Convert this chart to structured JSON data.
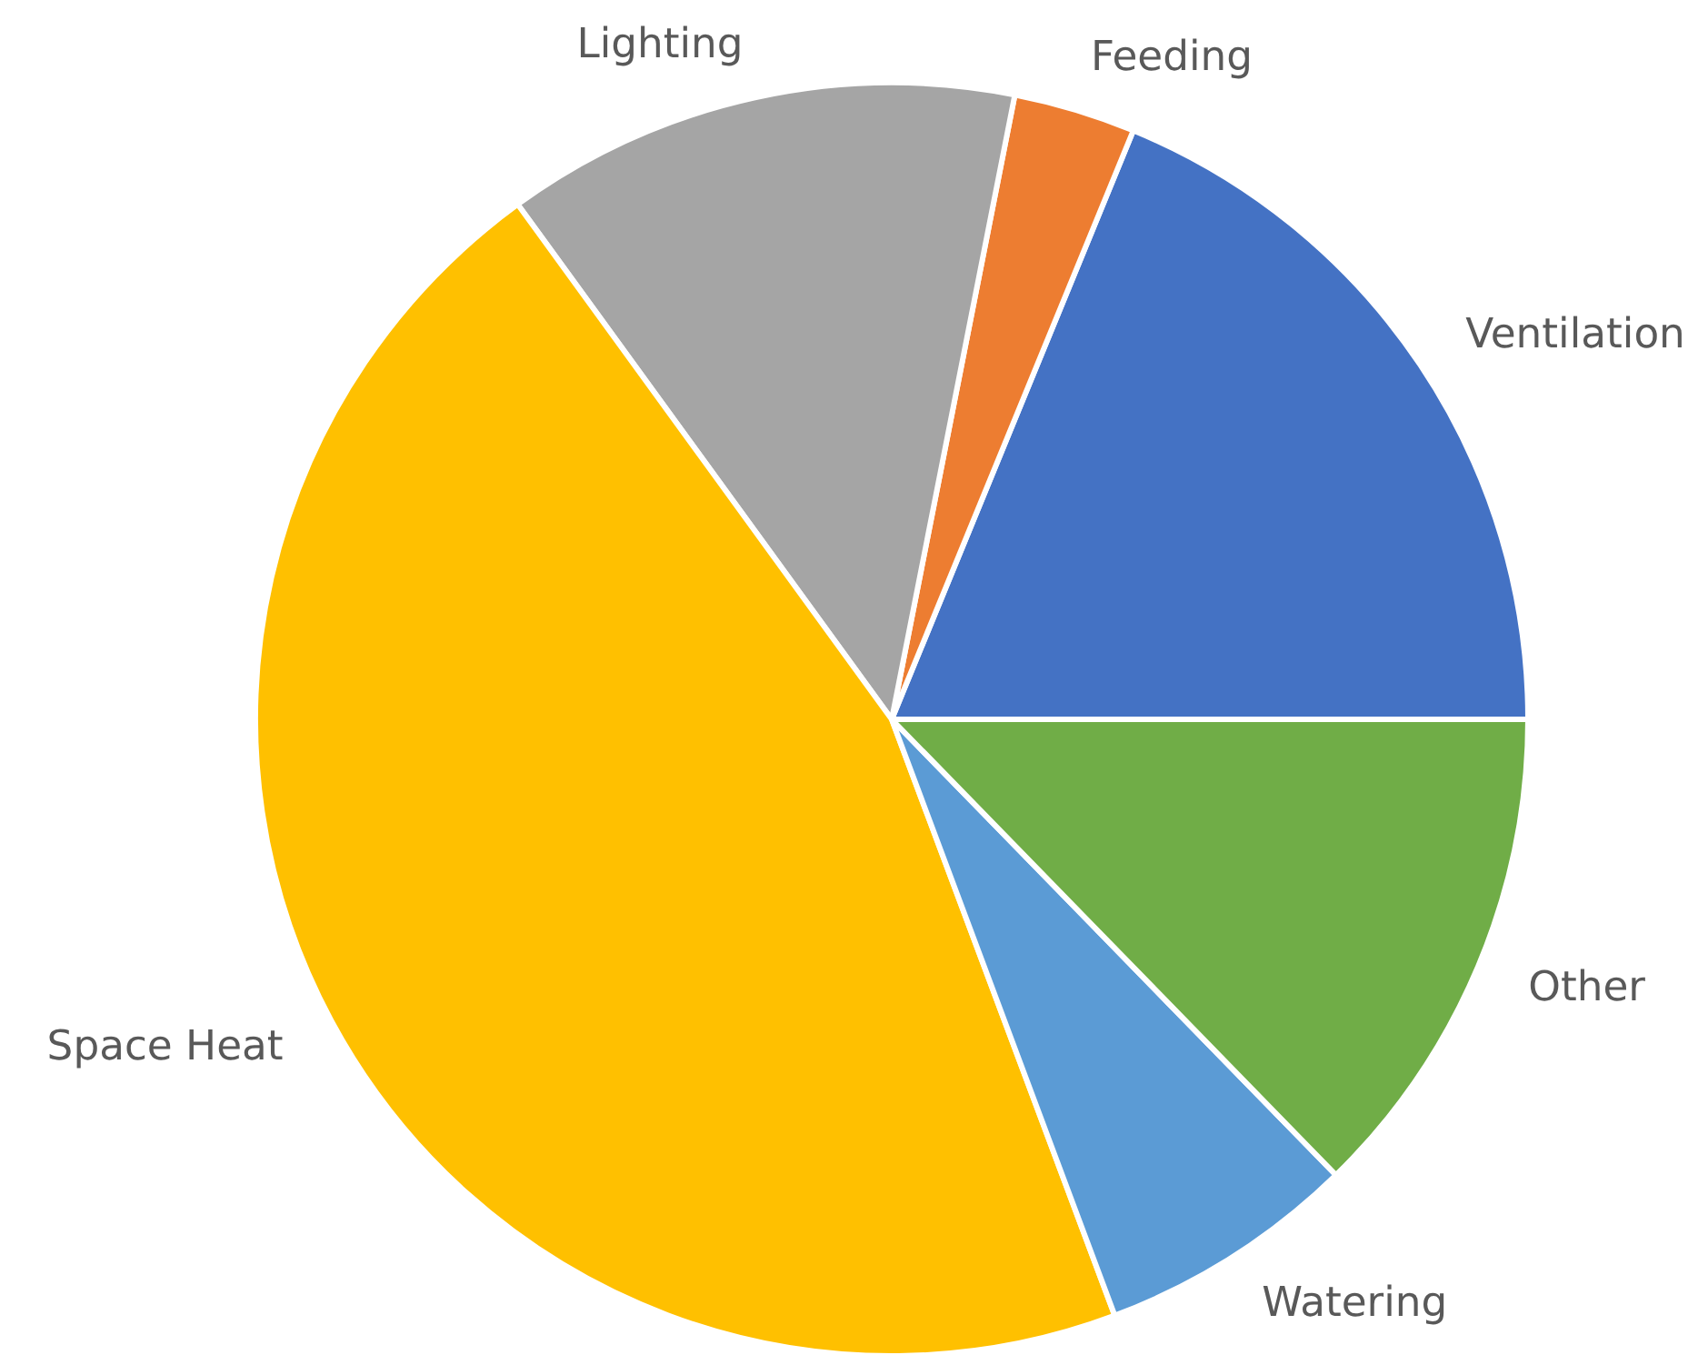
{
  "chart_data": {
    "type": "pie",
    "categories": [
      "Ventilation",
      "Feeding",
      "Lighting",
      "Space Heat",
      "Watering",
      "Other"
    ],
    "values": [
      18.8,
      3.1,
      13.1,
      45.7,
      6.6,
      12.7
    ],
    "colors": [
      "#4472c4",
      "#ed7d31",
      "#a5a5a5",
      "#ffc000",
      "#5b9bd5",
      "#70ad47"
    ],
    "legend": false
  }
}
